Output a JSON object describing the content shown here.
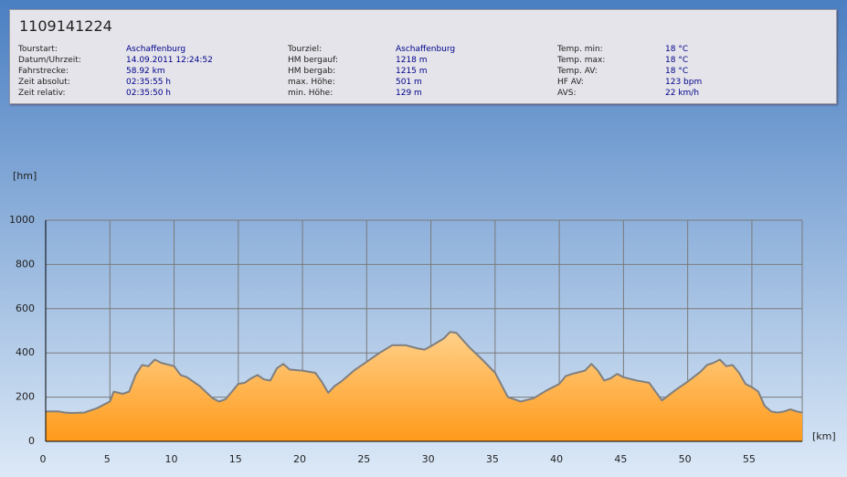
{
  "panel": {
    "title": "1109141224",
    "fields": [
      {
        "label": "Tourstart:",
        "value": "Aschaffenburg"
      },
      {
        "label": "Datum/Uhrzeit:",
        "value": "14.09.2011 12:24:52"
      },
      {
        "label": "Fahrstrecke:",
        "value": "58.92 km"
      },
      {
        "label": "Zeit absolut:",
        "value": "02:35:55 h"
      },
      {
        "label": "Zeit relativ:",
        "value": "02:35:50 h"
      },
      {
        "label": "Tourziel:",
        "value": "Aschaffenburg"
      },
      {
        "label": "HM bergauf:",
        "value": "1218 m"
      },
      {
        "label": "HM bergab:",
        "value": "1215 m"
      },
      {
        "label": "max. Höhe:",
        "value": "501 m"
      },
      {
        "label": "min. Höhe:",
        "value": "129 m"
      },
      {
        "label": "Temp. min:",
        "value": "18 °C"
      },
      {
        "label": "Temp. max:",
        "value": "18 °C"
      },
      {
        "label": "Temp. AV:",
        "value": "18 °C"
      },
      {
        "label": "HF AV:",
        "value": "123 bpm"
      },
      {
        "label": "AVS:",
        "value": "22 km/h"
      }
    ]
  },
  "chart_data": {
    "type": "area",
    "ylabel": "[hm]",
    "xlabel": "[km]",
    "x": [
      0,
      1,
      1.5,
      2,
      3,
      4,
      5,
      5.3,
      6,
      6.5,
      7,
      7.5,
      8,
      8.5,
      9,
      10,
      10.5,
      11,
      12,
      13,
      13.5,
      14,
      14.5,
      15,
      15.5,
      16,
      16.5,
      17,
      17.5,
      18,
      18.5,
      19,
      20,
      21,
      21.5,
      22,
      22.5,
      23,
      24,
      25,
      26,
      27,
      28,
      29,
      29.5,
      30,
      31,
      31.5,
      32,
      33,
      34,
      35,
      35.5,
      36,
      37,
      38,
      39,
      40,
      40.5,
      41,
      42,
      42.5,
      43,
      43.5,
      44,
      44.5,
      45,
      46,
      47,
      47.5,
      48,
      49,
      50,
      51,
      51.5,
      52,
      52.5,
      53,
      53.5,
      54,
      54.5,
      55,
      55.5,
      56,
      56.5,
      57,
      57.5,
      58,
      58.5,
      58.92
    ],
    "values": [
      135,
      135,
      130,
      128,
      130,
      150,
      180,
      225,
      215,
      225,
      300,
      345,
      340,
      370,
      355,
      340,
      300,
      290,
      250,
      195,
      180,
      190,
      225,
      260,
      265,
      285,
      300,
      280,
      275,
      330,
      350,
      325,
      320,
      310,
      270,
      220,
      250,
      270,
      320,
      360,
      400,
      435,
      435,
      420,
      415,
      430,
      465,
      495,
      490,
      425,
      370,
      310,
      255,
      200,
      180,
      195,
      230,
      260,
      295,
      305,
      320,
      350,
      320,
      275,
      285,
      305,
      290,
      275,
      265,
      225,
      185,
      230,
      270,
      315,
      345,
      355,
      370,
      340,
      345,
      310,
      260,
      245,
      225,
      160,
      135,
      130,
      135,
      145,
      135,
      130
    ],
    "color": "#ff9a1a",
    "line_color": "#7f7f7f",
    "xlim": [
      0,
      58.92
    ],
    "ylim": [
      0,
      1000
    ],
    "xticks": [
      0,
      5,
      10,
      15,
      20,
      25,
      30,
      35,
      40,
      45,
      50,
      55
    ],
    "yticks": [
      0,
      200,
      400,
      600,
      800,
      1000
    ],
    "grid": true
  }
}
